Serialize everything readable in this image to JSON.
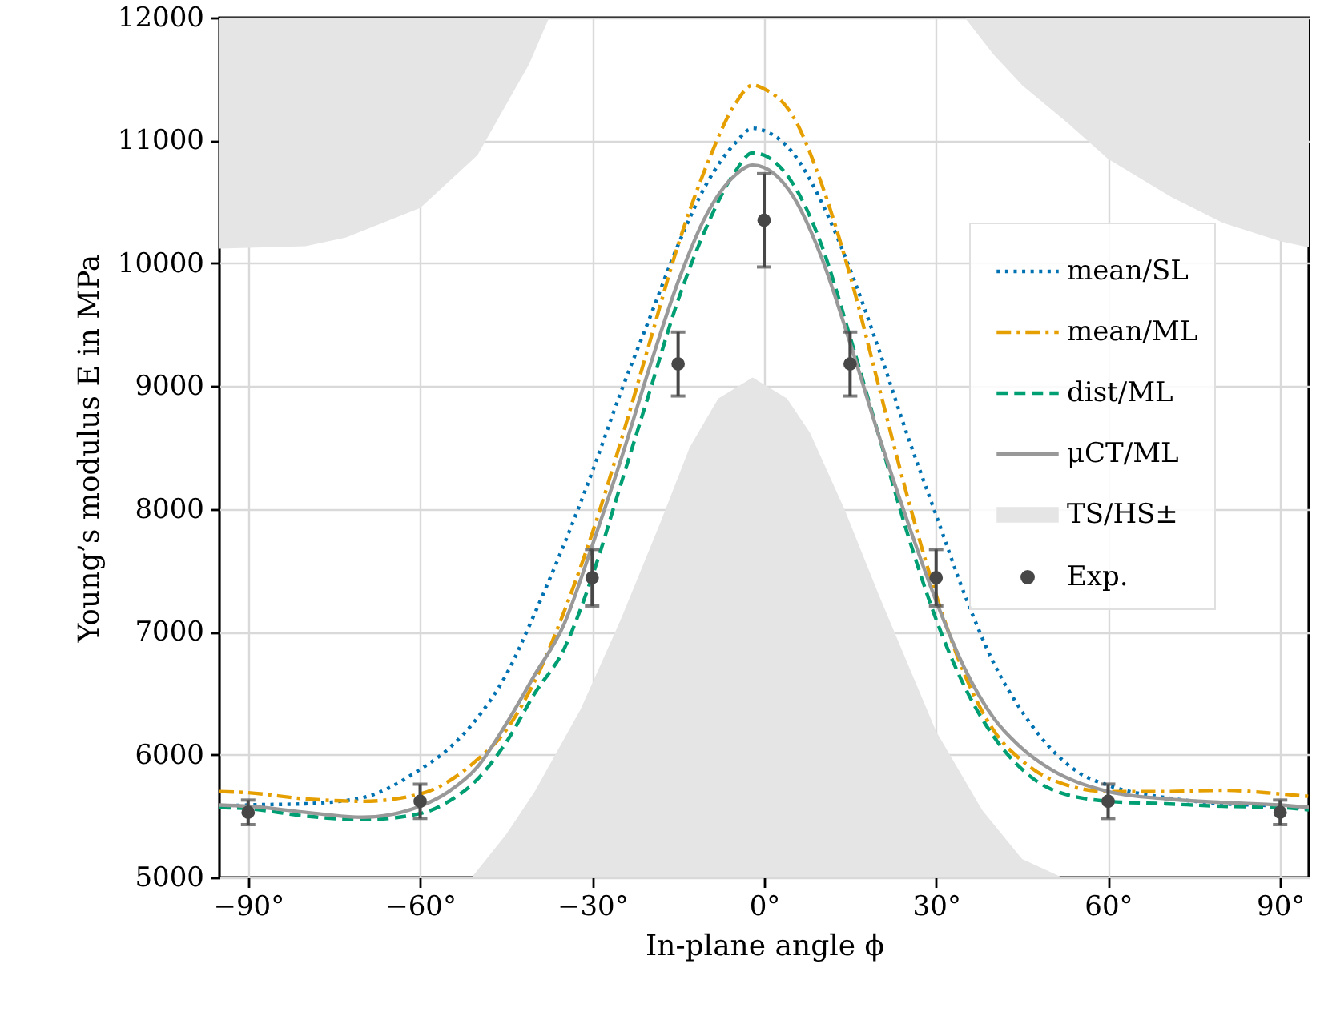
{
  "chart_data": {
    "type": "line",
    "xlabel": "In-plane angle ϕ",
    "ylabel": "Young’s modulus E in MPa",
    "xlim": [
      -95,
      95
    ],
    "ylim": [
      5000,
      12000
    ],
    "xticks": [
      {
        "value": -90,
        "label": "−90°"
      },
      {
        "value": -60,
        "label": "−60°"
      },
      {
        "value": -30,
        "label": "−30°"
      },
      {
        "value": 0,
        "label": "0°"
      },
      {
        "value": 30,
        "label": "30°"
      },
      {
        "value": 60,
        "label": "60°"
      },
      {
        "value": 90,
        "label": "90°"
      }
    ],
    "yticks": [
      5000,
      6000,
      7000,
      8000,
      9000,
      10000,
      11000,
      12000
    ],
    "grid": true,
    "legend": "right",
    "series": [
      {
        "name": "mean/SL",
        "type": "line",
        "color": "#0072b2",
        "line_style": "dotted",
        "x": [
          -95,
          -90,
          -80,
          -70,
          -60,
          -55,
          -50,
          -45,
          -40,
          -35,
          -30,
          -25,
          -20,
          -15,
          -10,
          -5,
          -2,
          0,
          5,
          10,
          15,
          20,
          25,
          30,
          35,
          40,
          45,
          50,
          55,
          60,
          70,
          80,
          90,
          95
        ],
        "values": [
          5580,
          5590,
          5600,
          5650,
          5880,
          6050,
          6300,
          6650,
          7150,
          7700,
          8300,
          8950,
          9550,
          10150,
          10650,
          10980,
          11100,
          11080,
          10900,
          10500,
          9950,
          9300,
          8600,
          7950,
          7300,
          6750,
          6350,
          6050,
          5850,
          5750,
          5650,
          5600,
          5580,
          5560
        ]
      },
      {
        "name": "mean/ML",
        "type": "line",
        "color": "#e69f00",
        "line_style": "dashdot",
        "x": [
          -95,
          -90,
          -80,
          -70,
          -60,
          -50,
          -45,
          -40,
          -35,
          -30,
          -25,
          -20,
          -15,
          -10,
          -5,
          -2,
          0,
          5,
          10,
          15,
          20,
          25,
          30,
          35,
          40,
          45,
          50,
          60,
          70,
          80,
          90,
          95
        ],
        "values": [
          5700,
          5690,
          5640,
          5620,
          5680,
          5960,
          6200,
          6600,
          7150,
          7800,
          8550,
          9350,
          10150,
          10800,
          11300,
          11450,
          11420,
          11200,
          10650,
          9900,
          9000,
          8100,
          7300,
          6650,
          6200,
          5950,
          5800,
          5700,
          5700,
          5710,
          5680,
          5660
        ]
      },
      {
        "name": "dist/ML",
        "type": "line",
        "color": "#009e73",
        "line_style": "dashed",
        "x": [
          -95,
          -90,
          -80,
          -70,
          -60,
          -55,
          -50,
          -45,
          -40,
          -35,
          -30,
          -25,
          -20,
          -15,
          -10,
          -5,
          -2,
          0,
          5,
          10,
          15,
          20,
          25,
          30,
          35,
          40,
          45,
          50,
          60,
          70,
          80,
          90,
          95
        ],
        "values": [
          5570,
          5560,
          5500,
          5470,
          5520,
          5620,
          5800,
          6100,
          6500,
          6850,
          7450,
          8200,
          8950,
          9700,
          10300,
          10750,
          10900,
          10880,
          10650,
          10150,
          9400,
          8600,
          7800,
          7100,
          6550,
          6150,
          5880,
          5720,
          5620,
          5600,
          5580,
          5570,
          5550
        ]
      },
      {
        "name": "μCT/ML",
        "type": "line",
        "color": "#999999",
        "line_style": "solid",
        "x": [
          -95,
          -90,
          -80,
          -70,
          -60,
          -55,
          -50,
          -45,
          -40,
          -35,
          -30,
          -25,
          -20,
          -15,
          -10,
          -5,
          -2,
          0,
          5,
          10,
          15,
          20,
          25,
          30,
          35,
          40,
          45,
          50,
          60,
          70,
          80,
          90,
          95
        ],
        "values": [
          5590,
          5580,
          5530,
          5490,
          5580,
          5700,
          5900,
          6250,
          6650,
          7050,
          7700,
          8400,
          9150,
          9850,
          10400,
          10720,
          10800,
          10780,
          10550,
          10050,
          9350,
          8600,
          7900,
          7250,
          6700,
          6300,
          6050,
          5880,
          5700,
          5640,
          5610,
          5590,
          5570
        ]
      },
      {
        "name": "TS/HS±",
        "type": "area",
        "color": "#e5e5e5",
        "x": [
          -51,
          -45,
          -40,
          -32,
          -25,
          -18,
          -13,
          -8,
          -2,
          4,
          8,
          14,
          20,
          30,
          38,
          45,
          52
        ],
        "values": [
          5000,
          5350,
          5700,
          6370,
          7100,
          7900,
          8500,
          8900,
          9070,
          8900,
          8620,
          8000,
          7300,
          6190,
          5550,
          5150,
          5000
        ]
      },
      {
        "type": "area",
        "color": "#e5e5e5",
        "x": [
          -95,
          -95,
          -80,
          -73,
          -60,
          -50,
          -41,
          -37.5
        ],
        "values": [
          12000,
          10120,
          10140,
          10210,
          10450,
          10880,
          11620,
          12000
        ]
      },
      {
        "type": "area",
        "color": "#e5e5e5",
        "x": [
          35,
          40,
          45,
          53,
          60,
          71,
          80,
          90,
          95,
          95
        ],
        "values": [
          12000,
          11700,
          11450,
          11140,
          10850,
          10540,
          10330,
          10180,
          10130,
          12000
        ]
      },
      {
        "name": "Exp.",
        "type": "scatter",
        "color": "#474747",
        "marker": "circle",
        "x": [
          -90,
          -60,
          -30,
          -15,
          0,
          15,
          30,
          60,
          90
        ],
        "values": [
          5530,
          5620,
          7440,
          9180,
          10350,
          9180,
          7440,
          5620,
          5530
        ],
        "errors": [
          100,
          140,
          230,
          260,
          380,
          260,
          230,
          140,
          100
        ]
      }
    ]
  }
}
